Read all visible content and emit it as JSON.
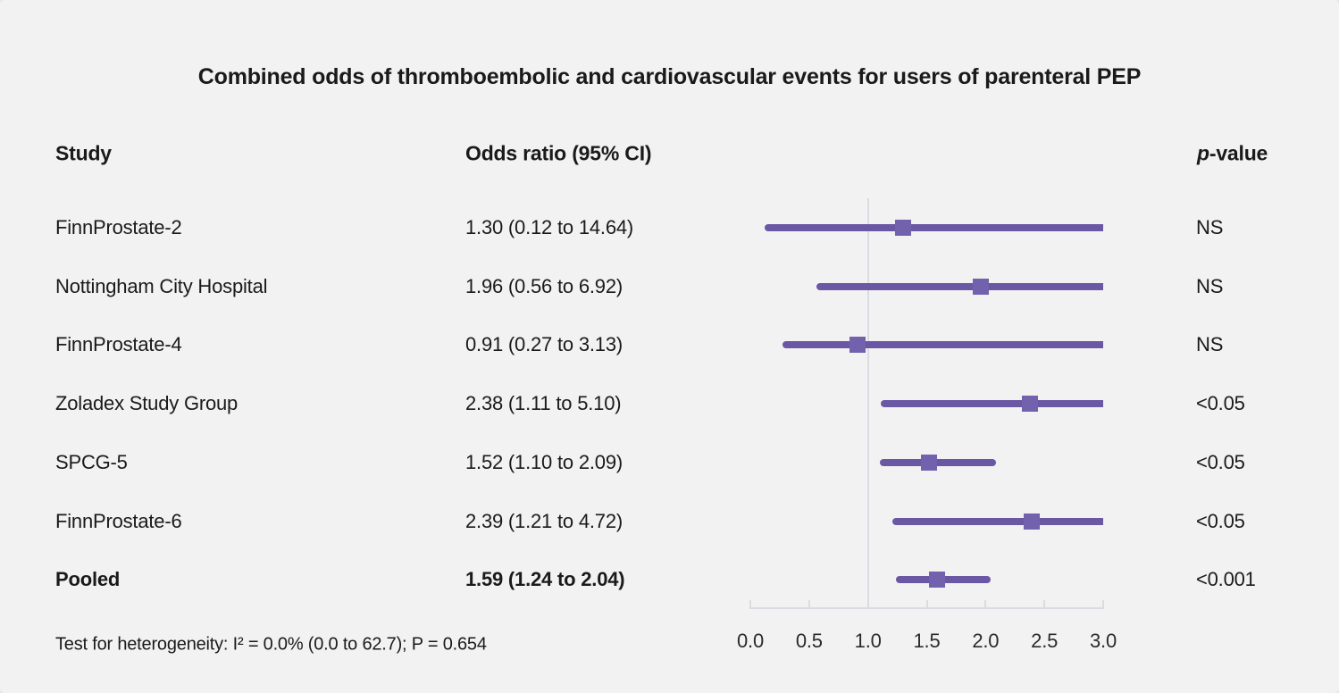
{
  "title": "Combined odds of thromboembolic and cardiovascular events for users of parenteral PEP",
  "columns": {
    "study": "Study",
    "odds_ratio": "Odds ratio (95% CI)",
    "p_italic": "p",
    "p_rest": "-value"
  },
  "footer": "Test for heterogeneity: I² = 0.0% (0.0 to 62.7); P = 0.654",
  "colors": {
    "background": "#f2f2f2",
    "text": "#1a1a1a",
    "ci_line": "#6a58a5",
    "marker": "#7261ac",
    "reference_line": "#d9dde3",
    "axis": "#d9dce1"
  },
  "chart_data": {
    "type": "forest",
    "title": "Combined odds of thromboembolic and cardiovascular events for users of parenteral PEP",
    "xlim": [
      0.0,
      3.0
    ],
    "tick_labels": [
      "0.0",
      "0.5",
      "1.0",
      "1.5",
      "2.0",
      "2.5",
      "3.0"
    ],
    "reference_value": 1.0,
    "grid": false,
    "rows": [
      {
        "study": "FinnProstate-2",
        "or_text": "1.30 (0.12 to 14.64)",
        "estimate": 1.3,
        "ci_low": 0.12,
        "ci_high": 14.64,
        "p": "NS",
        "bold": false
      },
      {
        "study": "Nottingham City Hospital",
        "or_text": "1.96 (0.56 to 6.92)",
        "estimate": 1.96,
        "ci_low": 0.56,
        "ci_high": 6.92,
        "p": "NS",
        "bold": false
      },
      {
        "study": "FinnProstate-4",
        "or_text": "0.91 (0.27 to 3.13)",
        "estimate": 0.91,
        "ci_low": 0.27,
        "ci_high": 3.13,
        "p": "NS",
        "bold": false
      },
      {
        "study": "Zoladex Study Group",
        "or_text": "2.38 (1.11 to 5.10)",
        "estimate": 2.38,
        "ci_low": 1.11,
        "ci_high": 5.1,
        "p": "<0.05",
        "bold": false
      },
      {
        "study": "SPCG-5",
        "or_text": "1.52 (1.10 to 2.09)",
        "estimate": 1.52,
        "ci_low": 1.1,
        "ci_high": 2.09,
        "p": "<0.05",
        "bold": false
      },
      {
        "study": "FinnProstate-6",
        "or_text": "2.39 (1.21 to 4.72)",
        "estimate": 2.39,
        "ci_low": 1.21,
        "ci_high": 4.72,
        "p": "<0.05",
        "bold": false
      },
      {
        "study": "Pooled",
        "or_text": "1.59 (1.24 to 2.04)",
        "estimate": 1.59,
        "ci_low": 1.24,
        "ci_high": 2.04,
        "p": "<0.001",
        "bold": true
      }
    ]
  }
}
